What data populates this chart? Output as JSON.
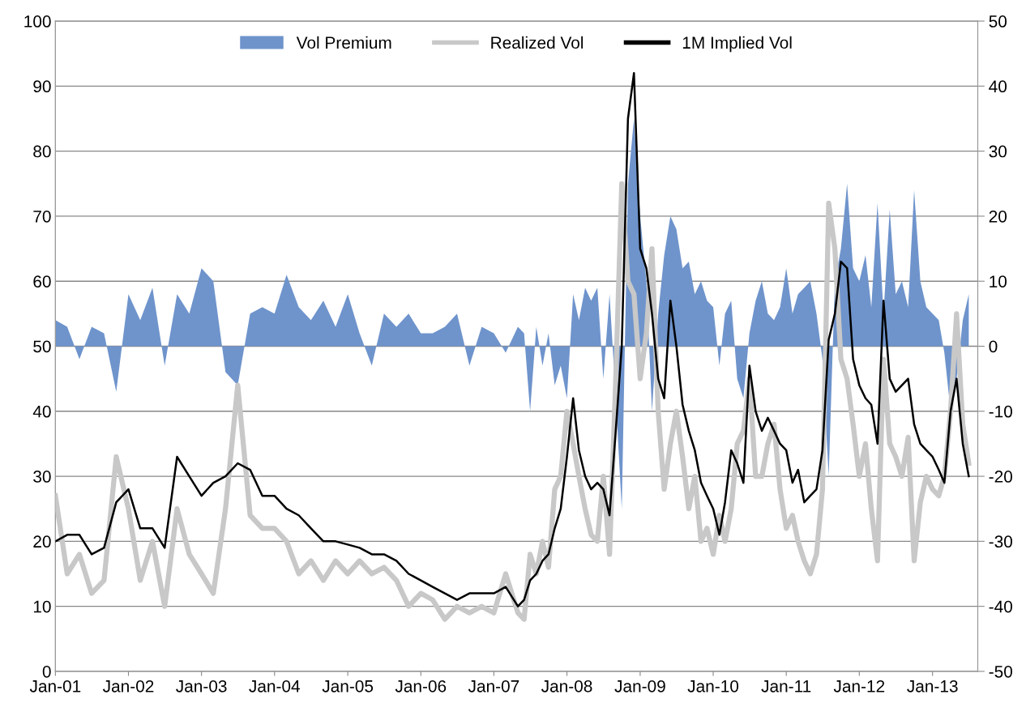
{
  "chart_data": {
    "type": "line",
    "x": [
      "2001-01",
      "2001-03",
      "2001-05",
      "2001-07",
      "2001-09",
      "2001-11",
      "2002-01",
      "2002-03",
      "2002-05",
      "2002-07",
      "2002-09",
      "2002-11",
      "2003-01",
      "2003-03",
      "2003-05",
      "2003-07",
      "2003-09",
      "2003-11",
      "2004-01",
      "2004-03",
      "2004-05",
      "2004-07",
      "2004-09",
      "2004-11",
      "2005-01",
      "2005-03",
      "2005-05",
      "2005-07",
      "2005-09",
      "2005-11",
      "2006-01",
      "2006-03",
      "2006-05",
      "2006-07",
      "2006-09",
      "2006-11",
      "2007-01",
      "2007-03",
      "2007-05",
      "2007-06",
      "2007-07",
      "2007-08",
      "2007-09",
      "2007-10",
      "2007-11",
      "2007-12",
      "2008-01",
      "2008-02",
      "2008-03",
      "2008-04",
      "2008-05",
      "2008-06",
      "2008-07",
      "2008-08",
      "2008-09",
      "2008-10",
      "2008-11",
      "2008-12",
      "2009-01",
      "2009-02",
      "2009-03",
      "2009-04",
      "2009-05",
      "2009-06",
      "2009-07",
      "2009-08",
      "2009-09",
      "2009-10",
      "2009-11",
      "2009-12",
      "2010-01",
      "2010-02",
      "2010-03",
      "2010-04",
      "2010-05",
      "2010-06",
      "2010-07",
      "2010-08",
      "2010-09",
      "2010-10",
      "2010-11",
      "2010-12",
      "2011-01",
      "2011-02",
      "2011-03",
      "2011-04",
      "2011-05",
      "2011-06",
      "2011-07",
      "2011-08",
      "2011-09",
      "2011-10",
      "2011-11",
      "2011-12",
      "2012-01",
      "2012-02",
      "2012-03",
      "2012-04",
      "2012-05",
      "2012-06",
      "2012-07",
      "2012-08",
      "2012-09",
      "2012-10",
      "2012-11",
      "2012-12",
      "2013-01",
      "2013-02",
      "2013-03",
      "2013-04",
      "2013-05",
      "2013-06",
      "2013-07"
    ],
    "series": [
      {
        "name": "Vol Premium",
        "type": "area",
        "axis": "y2",
        "color": "#6f94cc",
        "values": [
          4,
          3,
          -2,
          3,
          2,
          -7,
          8,
          4,
          9,
          -3,
          8,
          5,
          12,
          10,
          -4,
          -6,
          5,
          6,
          5,
          11,
          6,
          4,
          7,
          3,
          8,
          2,
          -3,
          5,
          3,
          5,
          2,
          2,
          3,
          5,
          -3,
          3,
          2,
          -1,
          3,
          2,
          -10,
          3,
          -3,
          2,
          -6,
          -3,
          -8,
          8,
          4,
          9,
          7,
          9,
          -5,
          8,
          -8,
          -25,
          25,
          35,
          20,
          10,
          -10,
          5,
          14,
          20,
          18,
          12,
          13,
          8,
          10,
          7,
          6,
          -3,
          5,
          7,
          -5,
          -8,
          2,
          7,
          10,
          5,
          4,
          6,
          12,
          5,
          8,
          9,
          10,
          5,
          -2,
          -20,
          10,
          15,
          25,
          12,
          10,
          14,
          6,
          22,
          5,
          21,
          8,
          10,
          6,
          24,
          10,
          6,
          5,
          4,
          -1,
          -10,
          -5,
          4,
          8
        ]
      },
      {
        "name": "Realized Vol",
        "color": "#c8c8c8",
        "values": [
          27,
          15,
          18,
          12,
          14,
          33,
          25,
          14,
          20,
          10,
          25,
          18,
          15,
          12,
          25,
          44,
          24,
          22,
          22,
          20,
          15,
          17,
          14,
          17,
          15,
          17,
          15,
          16,
          14,
          10,
          12,
          11,
          8,
          10,
          9,
          10,
          9,
          15,
          9,
          8,
          18,
          15,
          20,
          16,
          28,
          30,
          40,
          35,
          30,
          25,
          21,
          20,
          30,
          18,
          45,
          75,
          60,
          58,
          45,
          52,
          65,
          40,
          28,
          35,
          40,
          33,
          25,
          30,
          20,
          22,
          18,
          24,
          20,
          25,
          35,
          37,
          45,
          30,
          30,
          35,
          38,
          28,
          22,
          24,
          20,
          17,
          15,
          18,
          28,
          72,
          65,
          48,
          45,
          38,
          30,
          35,
          25,
          17,
          48,
          35,
          33,
          30,
          36,
          17,
          26,
          30,
          28,
          27,
          30,
          40,
          55,
          38,
          32
        ]
      },
      {
        "name": "1M Implied Vol",
        "color": "#000000",
        "values": [
          20,
          21,
          21,
          18,
          19,
          26,
          28,
          22,
          22,
          19,
          33,
          30,
          27,
          29,
          30,
          32,
          31,
          27,
          27,
          25,
          24,
          22,
          20,
          20,
          19.5,
          19,
          18,
          18,
          17,
          15,
          14,
          13,
          12,
          11,
          12,
          12,
          12,
          13,
          10,
          11,
          14,
          15,
          17,
          18,
          22,
          25,
          33,
          42,
          34,
          30,
          28,
          29,
          28,
          24,
          37,
          50,
          85,
          92,
          65,
          62,
          55,
          45,
          42,
          57,
          50,
          41,
          37,
          34,
          29,
          27,
          25,
          21,
          26,
          34,
          32,
          29,
          47,
          40,
          37,
          39,
          37,
          35,
          34,
          29,
          31,
          26,
          27,
          28,
          34,
          51,
          55,
          63,
          62,
          48,
          44,
          42,
          41,
          35,
          57,
          45,
          43,
          44,
          45,
          38,
          35,
          34,
          33,
          31,
          29,
          40,
          45,
          35,
          30
        ]
      }
    ],
    "xlim": [
      "2001-01-01",
      "2013-08-15"
    ],
    "xticks": [
      {
        "value": "2001-01-01",
        "label": "Jan-01"
      },
      {
        "value": "2002-01-01",
        "label": "Jan-02"
      },
      {
        "value": "2003-01-01",
        "label": "Jan-03"
      },
      {
        "value": "2004-01-01",
        "label": "Jan-04"
      },
      {
        "value": "2005-01-01",
        "label": "Jan-05"
      },
      {
        "value": "2006-01-01",
        "label": "Jan-06"
      },
      {
        "value": "2007-01-01",
        "label": "Jan-07"
      },
      {
        "value": "2008-01-01",
        "label": "Jan-08"
      },
      {
        "value": "2009-01-01",
        "label": "Jan-09"
      },
      {
        "value": "2010-01-01",
        "label": "Jan-10"
      },
      {
        "value": "2011-01-01",
        "label": "Jan-11"
      },
      {
        "value": "2012-01-01",
        "label": "Jan-12"
      },
      {
        "value": "2013-01-01",
        "label": "Jan-13"
      }
    ],
    "ylim": [
      0,
      100
    ],
    "yticks": [
      0,
      10,
      20,
      30,
      40,
      50,
      60,
      70,
      80,
      90,
      100
    ],
    "y2lim": [
      -50,
      50
    ],
    "y2ticks": [
      -50,
      -40,
      -30,
      -20,
      -10,
      0,
      10,
      20,
      30,
      40,
      50
    ],
    "grid": "y",
    "legend": "top"
  }
}
